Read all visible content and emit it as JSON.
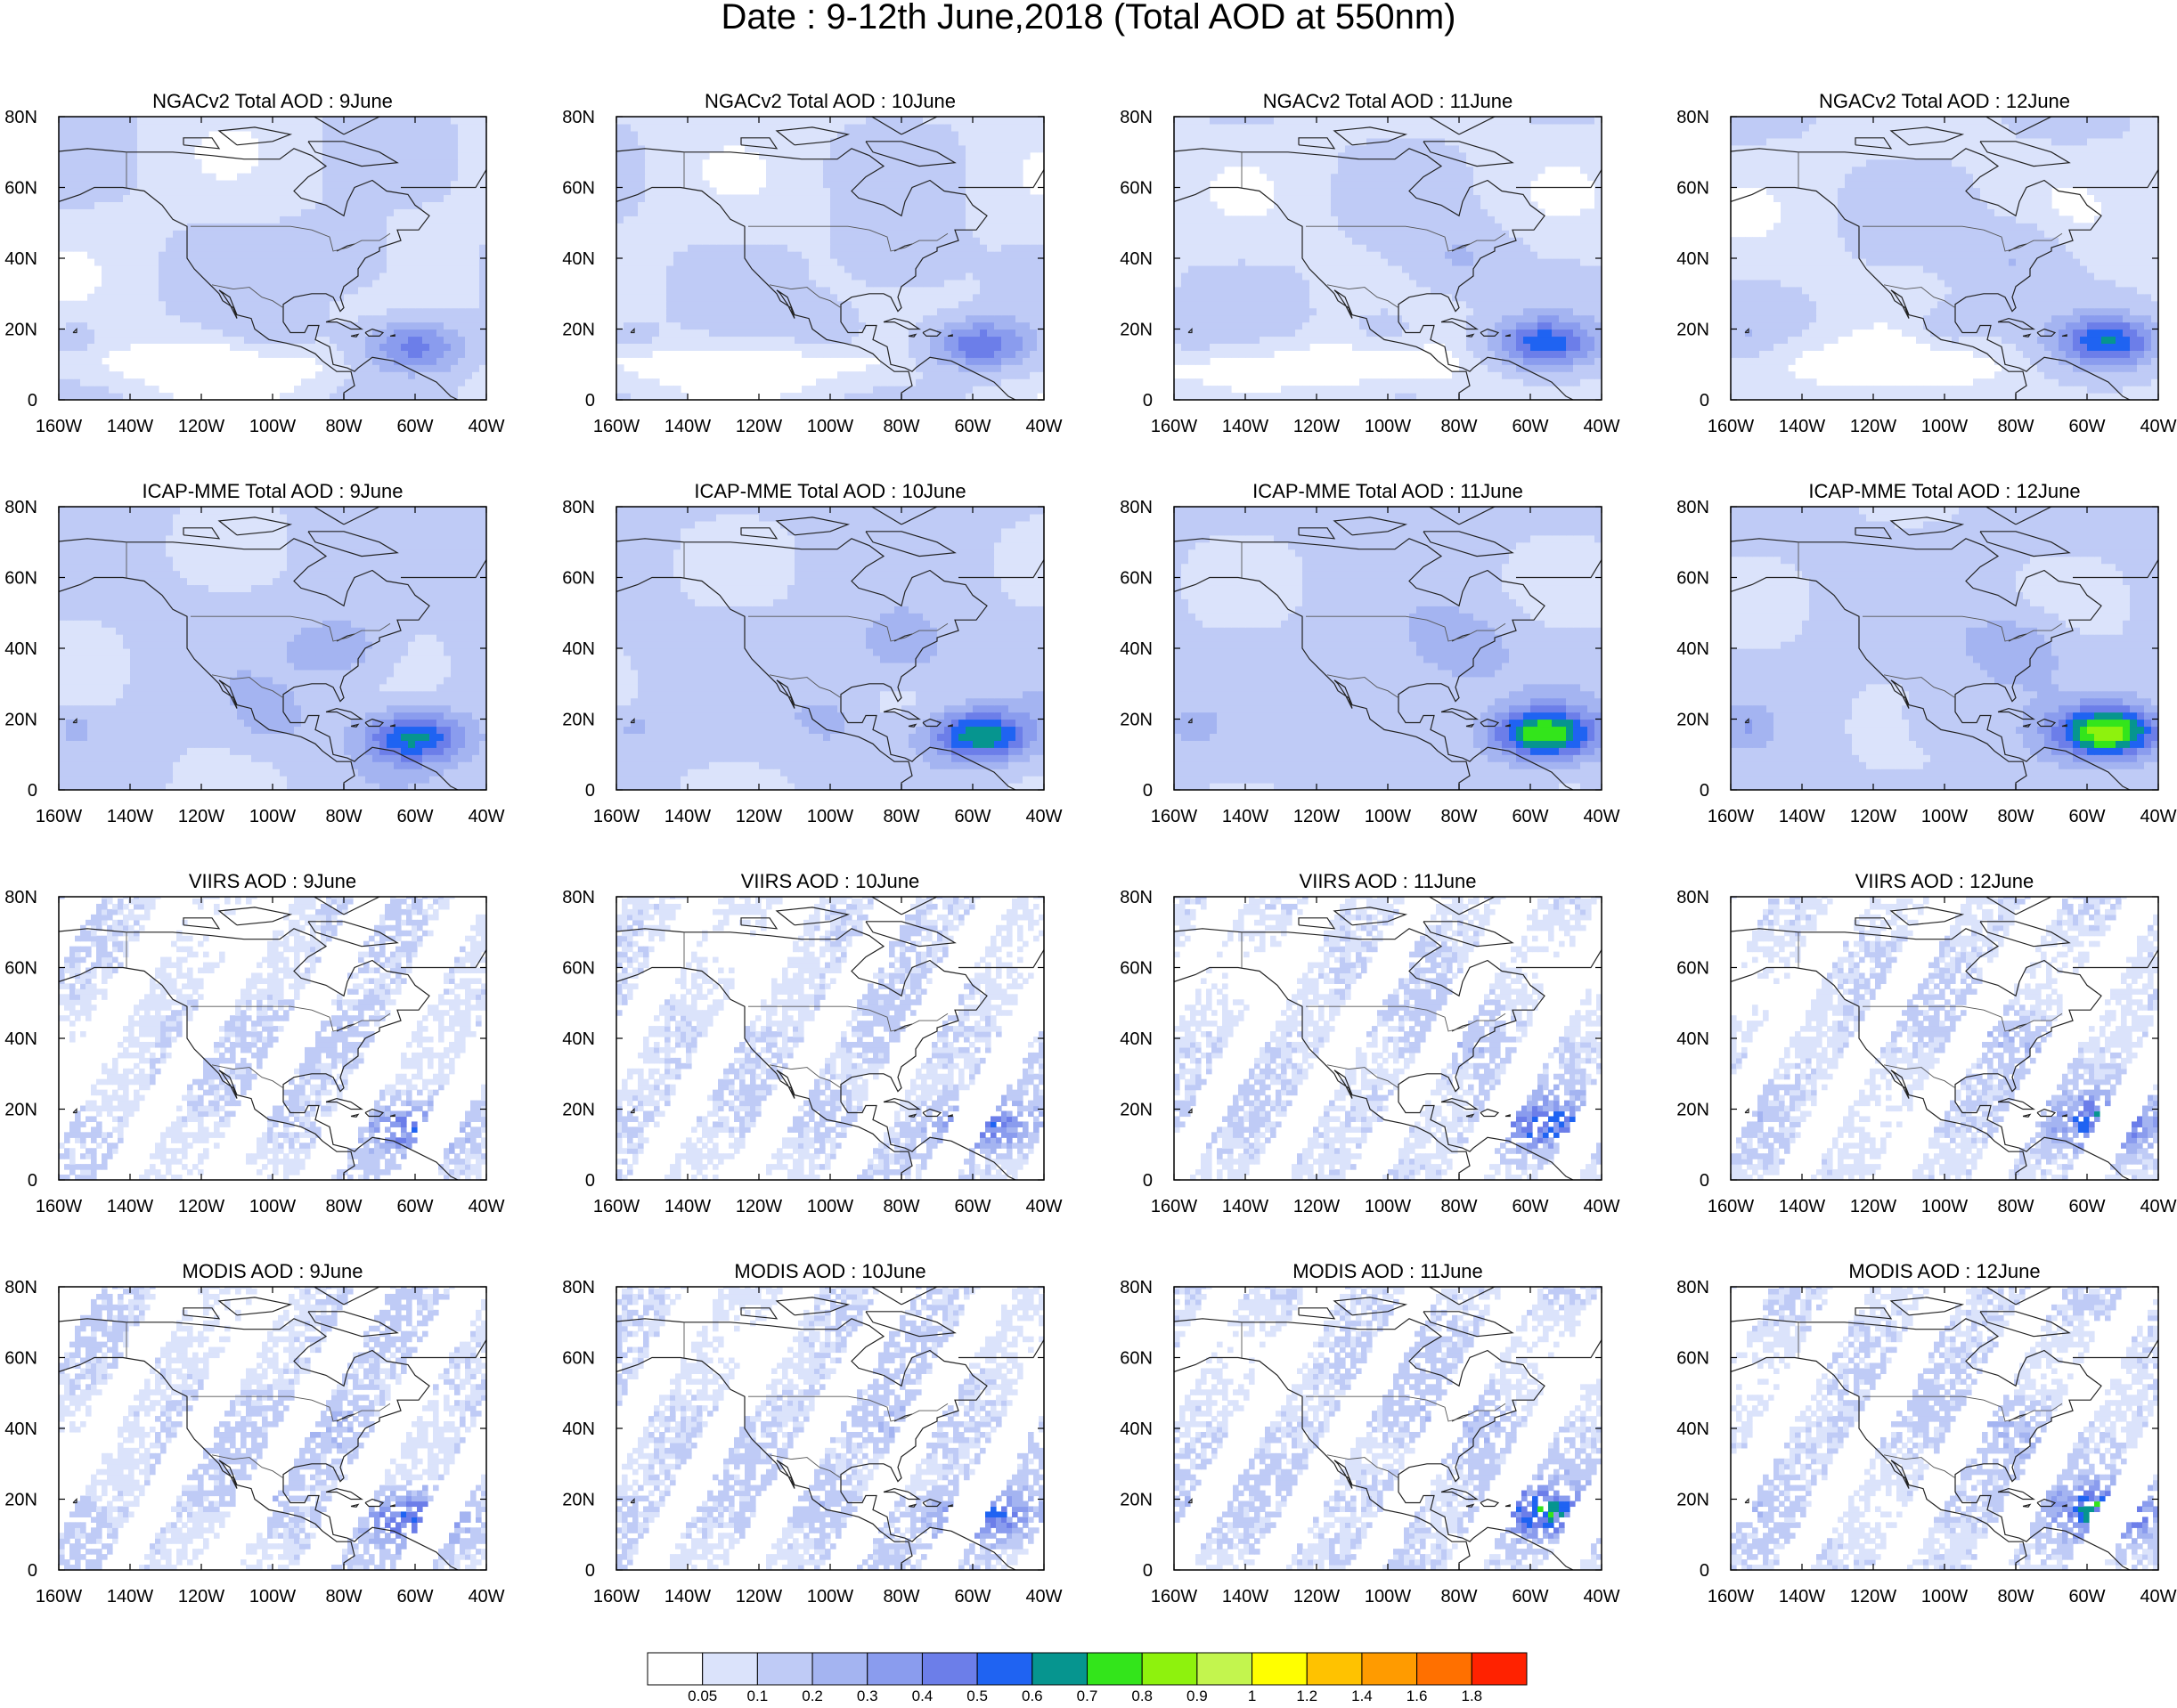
{
  "title": "Date : 9-12th June,2018 (Total AOD at 550nm)",
  "x_tick_labels": [
    "160W",
    "140W",
    "120W",
    "100W",
    "80W",
    "60W",
    "40W"
  ],
  "y_tick_labels": [
    "0",
    "20N",
    "40N",
    "60N",
    "80N"
  ],
  "x_range_deg": [
    -160,
    -40
  ],
  "y_range_deg": [
    0,
    80
  ],
  "rows": [
    {
      "product": "NGACv2",
      "style": "model",
      "intensity": 1.0,
      "titles": [
        "NGACv2 Total AOD : 9June",
        "NGACv2 Total AOD : 10June",
        "NGACv2 Total AOD : 11June",
        "NGACv2 Total AOD : 12June"
      ]
    },
    {
      "product": "ICAP-MME",
      "style": "model",
      "intensity": 1.4,
      "titles": [
        "ICAP-MME Total AOD : 9June",
        "ICAP-MME Total AOD : 10June",
        "ICAP-MME Total AOD : 11June",
        "ICAP-MME Total AOD : 12June"
      ]
    },
    {
      "product": "VIIRS",
      "style": "satellite",
      "intensity": 0.9,
      "titles": [
        "VIIRS AOD : 9June",
        "VIIRS AOD : 10June",
        "VIIRS AOD : 11June",
        "VIIRS AOD : 12June"
      ]
    },
    {
      "product": "MODIS",
      "style": "satellite",
      "intensity": 1.0,
      "titles": [
        "MODIS AOD : 9June",
        "MODIS AOD : 10June",
        "MODIS AOD : 11June",
        "MODIS AOD : 12June"
      ]
    }
  ],
  "colorbar": {
    "levels": [
      "0.05",
      "0.1",
      "0.2",
      "0.3",
      "0.4",
      "0.5",
      "0.6",
      "0.7",
      "0.8",
      "0.9",
      "1",
      "1.2",
      "1.4",
      "1.6",
      "1.8"
    ],
    "colors": [
      "#ffffff",
      "#dbe3fb",
      "#bfcbf6",
      "#a4b4f1",
      "#8a9cee",
      "#6c7ee9",
      "#1f63f2",
      "#06958f",
      "#33e51b",
      "#8ef20d",
      "#c3f54e",
      "#ffff00",
      "#ffc200",
      "#ff9b00",
      "#ff7000",
      "#ff2200"
    ]
  },
  "colors": {
    "land_outline": "#222222",
    "border": "#555555"
  }
}
